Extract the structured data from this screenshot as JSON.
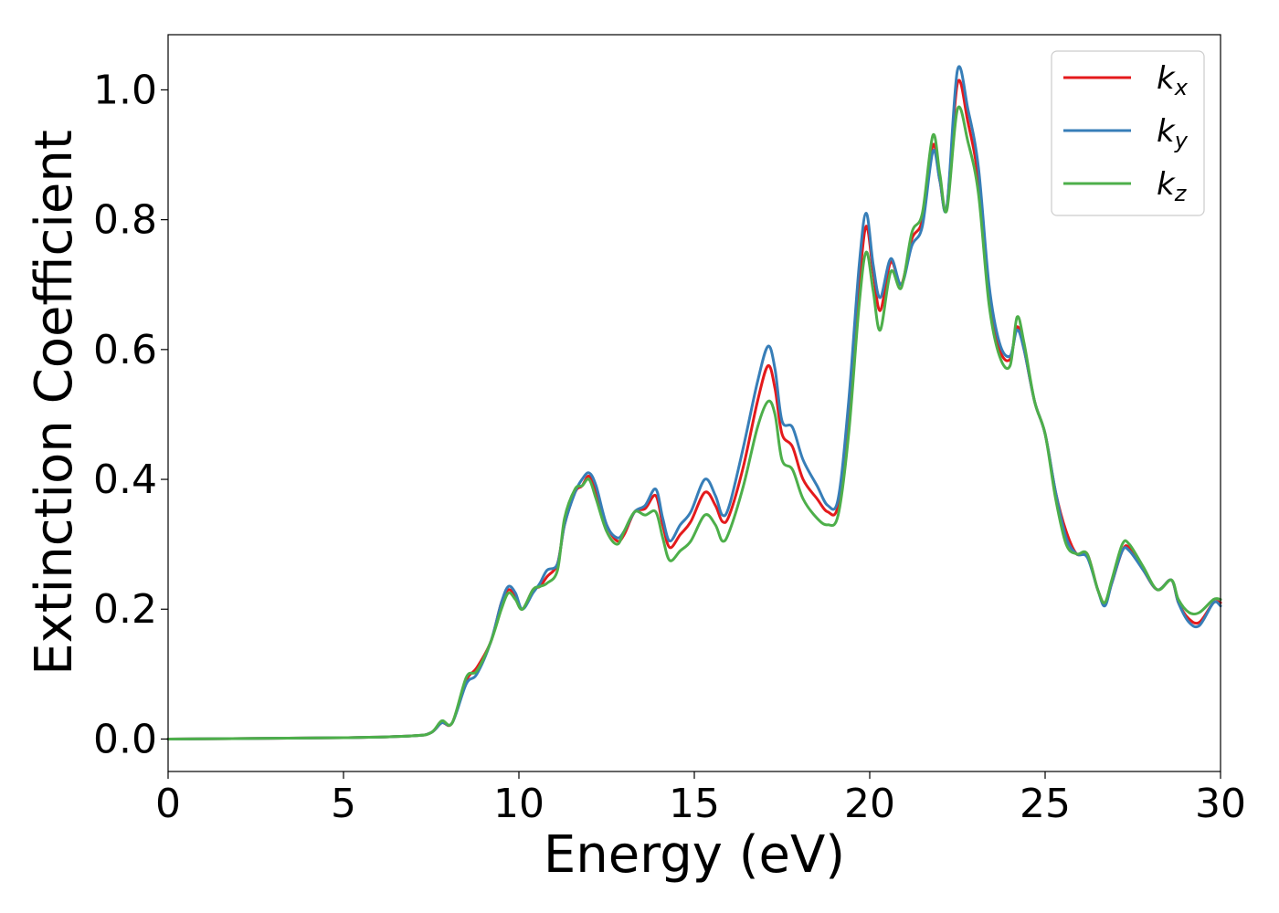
{
  "chart_data": {
    "type": "line",
    "title": "",
    "xlabel": "Energy (eV)",
    "ylabel": "Extinction Coefficient",
    "xlim": [
      0,
      30
    ],
    "ylim": [
      -0.05,
      1.085
    ],
    "xticks": [
      0,
      5,
      10,
      15,
      20,
      25,
      30
    ],
    "xtick_labels": [
      "0",
      "5",
      "10",
      "15",
      "20",
      "25",
      "30"
    ],
    "yticks": [
      0.0,
      0.2,
      0.4,
      0.6,
      0.8,
      1.0
    ],
    "ytick_labels": [
      "0.0",
      "0.2",
      "0.4",
      "0.6",
      "0.8",
      "1.0"
    ],
    "grid": false,
    "legend_position": "top-right",
    "series": [
      {
        "name": "k",
        "subscript": "x",
        "color": "#e41a1c",
        "points": [
          [
            0,
            0
          ],
          [
            5,
            0.002
          ],
          [
            7,
            0.005
          ],
          [
            7.5,
            0.01
          ],
          [
            7.8,
            0.025
          ],
          [
            8.1,
            0.025
          ],
          [
            8.5,
            0.09
          ],
          [
            8.8,
            0.11
          ],
          [
            9.2,
            0.15
          ],
          [
            9.5,
            0.21
          ],
          [
            9.7,
            0.23
          ],
          [
            9.9,
            0.22
          ],
          [
            10.1,
            0.2
          ],
          [
            10.4,
            0.23
          ],
          [
            10.6,
            0.235
          ],
          [
            10.8,
            0.25
          ],
          [
            11.1,
            0.27
          ],
          [
            11.3,
            0.33
          ],
          [
            11.6,
            0.38
          ],
          [
            11.8,
            0.39
          ],
          [
            12.0,
            0.405
          ],
          [
            12.2,
            0.38
          ],
          [
            12.5,
            0.33
          ],
          [
            12.8,
            0.305
          ],
          [
            13.0,
            0.315
          ],
          [
            13.3,
            0.35
          ],
          [
            13.6,
            0.355
          ],
          [
            13.9,
            0.375
          ],
          [
            14.1,
            0.33
          ],
          [
            14.3,
            0.295
          ],
          [
            14.6,
            0.315
          ],
          [
            14.9,
            0.335
          ],
          [
            15.3,
            0.38
          ],
          [
            15.6,
            0.36
          ],
          [
            15.8,
            0.335
          ],
          [
            16.0,
            0.345
          ],
          [
            16.4,
            0.42
          ],
          [
            16.8,
            0.52
          ],
          [
            17.1,
            0.575
          ],
          [
            17.3,
            0.54
          ],
          [
            17.5,
            0.47
          ],
          [
            17.8,
            0.45
          ],
          [
            18.1,
            0.4
          ],
          [
            18.5,
            0.37
          ],
          [
            18.8,
            0.35
          ],
          [
            19.1,
            0.36
          ],
          [
            19.4,
            0.5
          ],
          [
            19.7,
            0.7
          ],
          [
            19.9,
            0.79
          ],
          [
            20.1,
            0.72
          ],
          [
            20.3,
            0.66
          ],
          [
            20.6,
            0.735
          ],
          [
            20.9,
            0.7
          ],
          [
            21.2,
            0.77
          ],
          [
            21.5,
            0.8
          ],
          [
            21.8,
            0.915
          ],
          [
            22.0,
            0.86
          ],
          [
            22.2,
            0.82
          ],
          [
            22.5,
            1.01
          ],
          [
            22.8,
            0.95
          ],
          [
            23.1,
            0.86
          ],
          [
            23.4,
            0.68
          ],
          [
            23.7,
            0.6
          ],
          [
            24.0,
            0.585
          ],
          [
            24.2,
            0.635
          ],
          [
            24.4,
            0.6
          ],
          [
            24.7,
            0.52
          ],
          [
            25.0,
            0.47
          ],
          [
            25.3,
            0.38
          ],
          [
            25.6,
            0.32
          ],
          [
            25.9,
            0.285
          ],
          [
            26.2,
            0.285
          ],
          [
            26.5,
            0.23
          ],
          [
            26.7,
            0.21
          ],
          [
            26.9,
            0.24
          ],
          [
            27.2,
            0.29
          ],
          [
            27.4,
            0.295
          ],
          [
            27.8,
            0.26
          ],
          [
            28.2,
            0.23
          ],
          [
            28.6,
            0.245
          ],
          [
            28.8,
            0.21
          ],
          [
            29.1,
            0.185
          ],
          [
            29.4,
            0.18
          ],
          [
            29.8,
            0.21
          ],
          [
            30,
            0.21
          ]
        ]
      },
      {
        "name": "k",
        "subscript": "y",
        "color": "#377eb8",
        "points": [
          [
            0,
            0
          ],
          [
            5,
            0.002
          ],
          [
            7,
            0.005
          ],
          [
            7.5,
            0.01
          ],
          [
            7.8,
            0.025
          ],
          [
            8.1,
            0.025
          ],
          [
            8.5,
            0.085
          ],
          [
            8.8,
            0.1
          ],
          [
            9.2,
            0.15
          ],
          [
            9.5,
            0.21
          ],
          [
            9.7,
            0.235
          ],
          [
            9.9,
            0.225
          ],
          [
            10.1,
            0.2
          ],
          [
            10.4,
            0.225
          ],
          [
            10.6,
            0.24
          ],
          [
            10.8,
            0.26
          ],
          [
            11.1,
            0.27
          ],
          [
            11.3,
            0.33
          ],
          [
            11.6,
            0.38
          ],
          [
            11.8,
            0.4
          ],
          [
            12.0,
            0.41
          ],
          [
            12.2,
            0.39
          ],
          [
            12.5,
            0.33
          ],
          [
            12.8,
            0.31
          ],
          [
            13.0,
            0.32
          ],
          [
            13.3,
            0.35
          ],
          [
            13.6,
            0.36
          ],
          [
            13.9,
            0.385
          ],
          [
            14.1,
            0.34
          ],
          [
            14.3,
            0.305
          ],
          [
            14.6,
            0.33
          ],
          [
            14.9,
            0.35
          ],
          [
            15.3,
            0.4
          ],
          [
            15.6,
            0.375
          ],
          [
            15.8,
            0.345
          ],
          [
            16.0,
            0.36
          ],
          [
            16.4,
            0.45
          ],
          [
            16.8,
            0.55
          ],
          [
            17.1,
            0.605
          ],
          [
            17.3,
            0.57
          ],
          [
            17.5,
            0.49
          ],
          [
            17.8,
            0.48
          ],
          [
            18.1,
            0.43
          ],
          [
            18.5,
            0.39
          ],
          [
            18.8,
            0.36
          ],
          [
            19.1,
            0.37
          ],
          [
            19.4,
            0.52
          ],
          [
            19.7,
            0.73
          ],
          [
            19.9,
            0.81
          ],
          [
            20.1,
            0.73
          ],
          [
            20.3,
            0.68
          ],
          [
            20.6,
            0.74
          ],
          [
            20.9,
            0.7
          ],
          [
            21.2,
            0.76
          ],
          [
            21.5,
            0.79
          ],
          [
            21.8,
            0.905
          ],
          [
            22.0,
            0.86
          ],
          [
            22.2,
            0.82
          ],
          [
            22.5,
            1.03
          ],
          [
            22.8,
            0.97
          ],
          [
            23.1,
            0.88
          ],
          [
            23.4,
            0.7
          ],
          [
            23.7,
            0.61
          ],
          [
            24.0,
            0.59
          ],
          [
            24.2,
            0.63
          ],
          [
            24.4,
            0.6
          ],
          [
            24.7,
            0.52
          ],
          [
            25.0,
            0.47
          ],
          [
            25.3,
            0.38
          ],
          [
            25.6,
            0.31
          ],
          [
            25.9,
            0.285
          ],
          [
            26.2,
            0.28
          ],
          [
            26.5,
            0.23
          ],
          [
            26.7,
            0.205
          ],
          [
            26.9,
            0.24
          ],
          [
            27.2,
            0.29
          ],
          [
            27.4,
            0.29
          ],
          [
            27.8,
            0.26
          ],
          [
            28.2,
            0.23
          ],
          [
            28.6,
            0.245
          ],
          [
            28.8,
            0.21
          ],
          [
            29.1,
            0.18
          ],
          [
            29.4,
            0.175
          ],
          [
            29.8,
            0.21
          ],
          [
            30,
            0.205
          ]
        ]
      },
      {
        "name": "k",
        "subscript": "z",
        "color": "#4daf4a",
        "points": [
          [
            0,
            0
          ],
          [
            5,
            0.002
          ],
          [
            7,
            0.005
          ],
          [
            7.5,
            0.01
          ],
          [
            7.8,
            0.028
          ],
          [
            8.1,
            0.025
          ],
          [
            8.5,
            0.095
          ],
          [
            8.8,
            0.105
          ],
          [
            9.2,
            0.15
          ],
          [
            9.5,
            0.2
          ],
          [
            9.7,
            0.225
          ],
          [
            9.9,
            0.215
          ],
          [
            10.1,
            0.2
          ],
          [
            10.4,
            0.23
          ],
          [
            10.6,
            0.235
          ],
          [
            10.8,
            0.24
          ],
          [
            11.1,
            0.26
          ],
          [
            11.3,
            0.34
          ],
          [
            11.6,
            0.385
          ],
          [
            11.8,
            0.39
          ],
          [
            12.0,
            0.4
          ],
          [
            12.2,
            0.37
          ],
          [
            12.5,
            0.32
          ],
          [
            12.8,
            0.3
          ],
          [
            13.0,
            0.32
          ],
          [
            13.3,
            0.35
          ],
          [
            13.6,
            0.345
          ],
          [
            13.9,
            0.35
          ],
          [
            14.1,
            0.31
          ],
          [
            14.3,
            0.275
          ],
          [
            14.6,
            0.29
          ],
          [
            14.9,
            0.305
          ],
          [
            15.3,
            0.345
          ],
          [
            15.6,
            0.33
          ],
          [
            15.8,
            0.305
          ],
          [
            16.0,
            0.32
          ],
          [
            16.4,
            0.39
          ],
          [
            16.8,
            0.48
          ],
          [
            17.1,
            0.52
          ],
          [
            17.3,
            0.5
          ],
          [
            17.5,
            0.43
          ],
          [
            17.8,
            0.415
          ],
          [
            18.1,
            0.37
          ],
          [
            18.5,
            0.34
          ],
          [
            18.8,
            0.33
          ],
          [
            19.1,
            0.345
          ],
          [
            19.4,
            0.47
          ],
          [
            19.7,
            0.67
          ],
          [
            19.9,
            0.75
          ],
          [
            20.1,
            0.69
          ],
          [
            20.3,
            0.63
          ],
          [
            20.6,
            0.72
          ],
          [
            20.9,
            0.695
          ],
          [
            21.2,
            0.78
          ],
          [
            21.5,
            0.81
          ],
          [
            21.8,
            0.93
          ],
          [
            22.0,
            0.87
          ],
          [
            22.2,
            0.815
          ],
          [
            22.5,
            0.97
          ],
          [
            22.8,
            0.92
          ],
          [
            23.1,
            0.84
          ],
          [
            23.4,
            0.67
          ],
          [
            23.7,
            0.59
          ],
          [
            24.0,
            0.575
          ],
          [
            24.2,
            0.65
          ],
          [
            24.4,
            0.61
          ],
          [
            24.7,
            0.52
          ],
          [
            25.0,
            0.47
          ],
          [
            25.3,
            0.37
          ],
          [
            25.6,
            0.3
          ],
          [
            25.9,
            0.285
          ],
          [
            26.2,
            0.285
          ],
          [
            26.5,
            0.23
          ],
          [
            26.7,
            0.21
          ],
          [
            26.9,
            0.245
          ],
          [
            27.2,
            0.3
          ],
          [
            27.4,
            0.3
          ],
          [
            27.8,
            0.265
          ],
          [
            28.2,
            0.23
          ],
          [
            28.6,
            0.245
          ],
          [
            28.8,
            0.215
          ],
          [
            29.1,
            0.195
          ],
          [
            29.4,
            0.195
          ],
          [
            29.8,
            0.215
          ],
          [
            30,
            0.215
          ]
        ]
      }
    ]
  }
}
